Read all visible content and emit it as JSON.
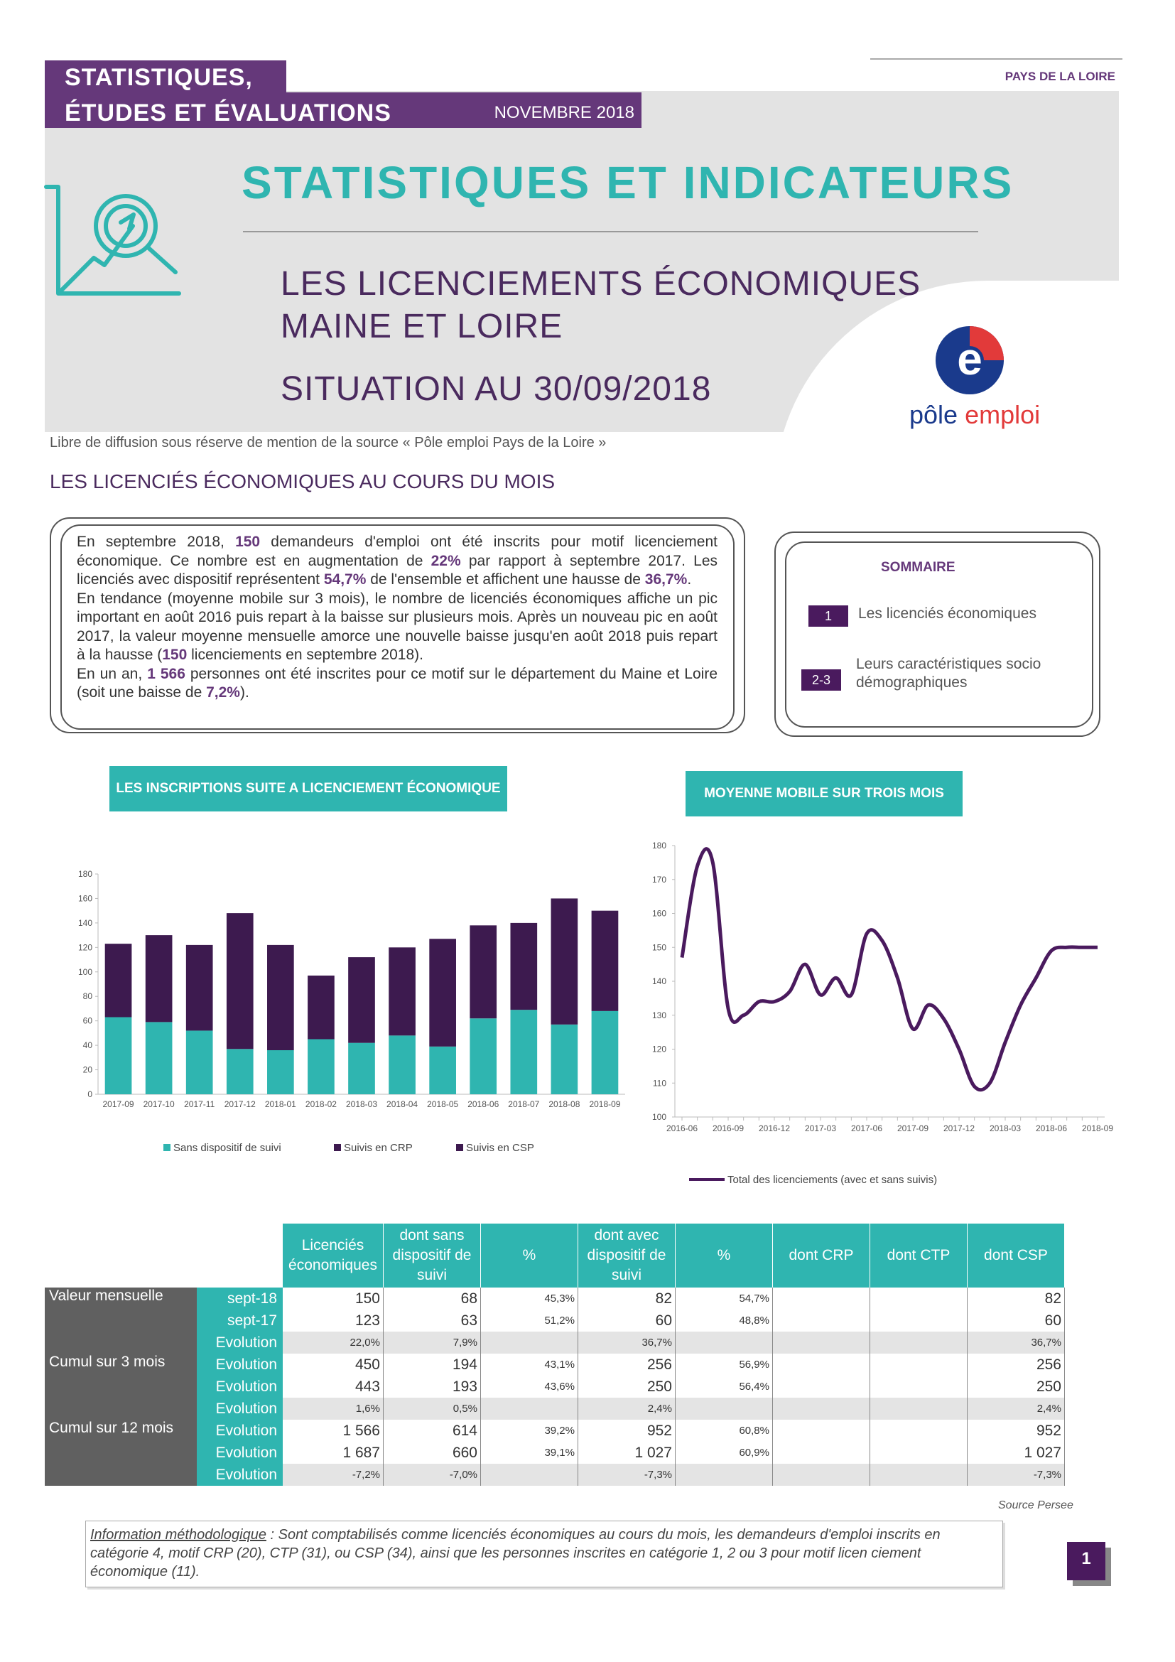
{
  "header": {
    "brand_line1": "STATISTIQUES,",
    "brand_line2": "ÉTUDES ET ÉVALUATIONS",
    "date": "NOVEMBRE 2018",
    "region": "PAYS DE LA LOIRE",
    "title": "STATISTIQUES ET INDICATEURS",
    "subtitle1": "LES LICENCIEMENTS ÉCONOMIQUES",
    "subtitle2": "MAINE ET LOIRE",
    "subtitle3": "SITUATION AU 30/09/2018",
    "logo_text_a": "pôle",
    "logo_text_b": "emploi",
    "logo_letter": "e"
  },
  "diffusion": "Libre de diffusion sous réserve de mention de la source  « Pôle emploi Pays de la Loire »",
  "section_title": "LES LICENCIÉS ÉCONOMIQUES AU COURS DU MOIS",
  "summary": {
    "p1a": "En septembre 2018, ",
    "p1b": "150",
    "p1c": " demandeurs d'emploi ont été inscrits pour motif licenciement économique. Ce nombre est en augmentation de ",
    "p1d": "22%",
    "p1e": " par rapport à septembre 2017. Les licenciés avec dispositif représentent ",
    "p1f": "54,7%",
    "p1g": " de l'ensemble et affichent une hausse de ",
    "p1h": "36,7%",
    "p1i": ".",
    "p2a": "En tendance (moyenne mobile sur 3 mois), le nombre de licenciés économiques affiche un pic important en août 2016 puis repart à la baisse sur plusieurs mois. Après un nouveau pic en août 2017, la valeur moyenne mensuelle amorce une nouvelle baisse jusqu'en août 2018 puis repart à la hausse (",
    "p2b": "150",
    "p2c": " licenciements en septembre 2018).",
    "p3a": "En un an, ",
    "p3b": "1 566",
    "p3c": " personnes ont été inscrites pour ce motif sur le département du Maine et Loire (soit une baisse de ",
    "p3d": "7,2%",
    "p3e": ")."
  },
  "sommaire": {
    "title": "SOMMAIRE",
    "items": [
      {
        "num": "1",
        "label": "Les licenciés économiques"
      },
      {
        "num": "2-3",
        "label": "Leurs caractéristiques socio démographiques"
      }
    ]
  },
  "chart_titles": {
    "bar": "LES INSCRIPTIONS SUITE A LICENCIEMENT ÉCONOMIQUE",
    "line": "MOYENNE MOBILE SUR TROIS MOIS"
  },
  "chart_data": [
    {
      "type": "bar",
      "stacked": true,
      "categories": [
        "2017-09",
        "2017-10",
        "2017-11",
        "2017-12",
        "2018-01",
        "2018-02",
        "2018-03",
        "2018-04",
        "2018-05",
        "2018-06",
        "2018-07",
        "2018-08",
        "2018-09"
      ],
      "series": [
        {
          "name": "Sans dispositif de suivi",
          "color": "#2fb5b0",
          "values": [
            63,
            59,
            52,
            37,
            36,
            45,
            42,
            48,
            39,
            62,
            69,
            57,
            68
          ]
        },
        {
          "name": "Suivis en CRP",
          "color": "#3d1a4f",
          "values": [
            0,
            0,
            0,
            0,
            0,
            0,
            0,
            0,
            0,
            0,
            0,
            0,
            0
          ]
        },
        {
          "name": "Suivis en CSP",
          "color": "#3d1a4f",
          "values": [
            60,
            71,
            70,
            111,
            86,
            52,
            70,
            72,
            88,
            76,
            71,
            103,
            82
          ]
        }
      ],
      "ylim": [
        0,
        180
      ],
      "yticks": [
        0,
        20,
        40,
        60,
        80,
        100,
        120,
        140,
        160,
        180
      ],
      "legend_position": "bottom",
      "grid": false
    },
    {
      "type": "line",
      "x": [
        "2016-06",
        "2016-07",
        "2016-08",
        "2016-09",
        "2016-10",
        "2016-11",
        "2016-12",
        "2017-01",
        "2017-02",
        "2017-03",
        "2017-04",
        "2017-05",
        "2017-06",
        "2017-07",
        "2017-08",
        "2017-09",
        "2017-10",
        "2017-11",
        "2017-12",
        "2018-01",
        "2018-02",
        "2018-03",
        "2018-04",
        "2018-05",
        "2018-06",
        "2018-07",
        "2018-08",
        "2018-09"
      ],
      "xticks": [
        "2016-06",
        "2016-09",
        "2016-12",
        "2017-03",
        "2017-06",
        "2017-09",
        "2017-12",
        "2018-03",
        "2018-06",
        "2018-09"
      ],
      "series": [
        {
          "name": "Total des licenciements (avec et sans suivis)",
          "color": "#4a1a5e",
          "values": [
            147,
            174,
            175,
            132,
            130,
            134,
            134,
            137,
            145,
            136,
            141,
            136,
            154,
            152,
            141,
            126,
            133,
            129,
            120,
            109,
            110,
            122,
            133,
            141,
            149,
            150,
            150,
            150
          ]
        }
      ],
      "ylim": [
        100,
        180
      ],
      "yticks": [
        100,
        110,
        120,
        130,
        140,
        150,
        160,
        170,
        180
      ],
      "legend_position": "bottom",
      "grid": false
    }
  ],
  "table": {
    "headers": [
      "Licenciés économiques",
      "dont sans dispositif de suivi",
      "%",
      "dont avec dispositif de suivi",
      "%",
      "dont CRP",
      "dont CTP",
      "dont CSP"
    ],
    "rows": [
      {
        "group": "Valeur mensuelle",
        "label": "sept-18",
        "evo": false,
        "cells": [
          "150",
          "68",
          "45,3%",
          "82",
          "54,7%",
          "",
          "",
          "82"
        ]
      },
      {
        "group": "",
        "label": "sept-17",
        "evo": false,
        "cells": [
          "123",
          "63",
          "51,2%",
          "60",
          "48,8%",
          "",
          "",
          "60"
        ]
      },
      {
        "group": "",
        "label": "Evolution",
        "evo": true,
        "cells": [
          "22,0%",
          "7,9%",
          "",
          "36,7%",
          "",
          "",
          "",
          "36,7%"
        ]
      },
      {
        "group": "Cumul sur 3 mois",
        "label": "Evolution",
        "evo": false,
        "cells": [
          "450",
          "194",
          "43,1%",
          "256",
          "56,9%",
          "",
          "",
          "256"
        ]
      },
      {
        "group": "",
        "label": "Evolution",
        "evo": false,
        "cells": [
          "443",
          "193",
          "43,6%",
          "250",
          "56,4%",
          "",
          "",
          "250"
        ]
      },
      {
        "group": "",
        "label": "Evolution",
        "evo": true,
        "cells": [
          "1,6%",
          "0,5%",
          "",
          "2,4%",
          "",
          "",
          "",
          "2,4%"
        ]
      },
      {
        "group": "Cumul sur 12 mois",
        "label": "Evolution",
        "evo": false,
        "cells": [
          "1 566",
          "614",
          "39,2%",
          "952",
          "60,8%",
          "",
          "",
          "952"
        ]
      },
      {
        "group": "",
        "label": "Evolution",
        "evo": false,
        "cells": [
          "1 687",
          "660",
          "39,1%",
          "1 027",
          "60,9%",
          "",
          "",
          "1 027"
        ]
      },
      {
        "group": "",
        "label": "Evolution",
        "evo": true,
        "cells": [
          "-7,2%",
          "-7,0%",
          "",
          "-7,3%",
          "",
          "",
          "",
          "-7,3%"
        ]
      }
    ],
    "source": "Source Persee"
  },
  "methodology": {
    "label": "Information méthodologique",
    "text": " : Sont comptabilisés comme licenciés économiques au cours du mois, les demandeurs d'emploi inscrits en catégorie 4, motif CRP (20), CTP (31), ou CSP (34), ainsi que les personnes inscrites en catégorie 1, 2 ou 3 pour motif licen ciement économique (11)."
  },
  "page_number": "1",
  "colors": {
    "teal": "#2fb5b0",
    "purple": "#65387a",
    "dark_purple": "#3d1a4f"
  },
  "icons": {
    "header_icon": "chart-magnifier-icon"
  }
}
